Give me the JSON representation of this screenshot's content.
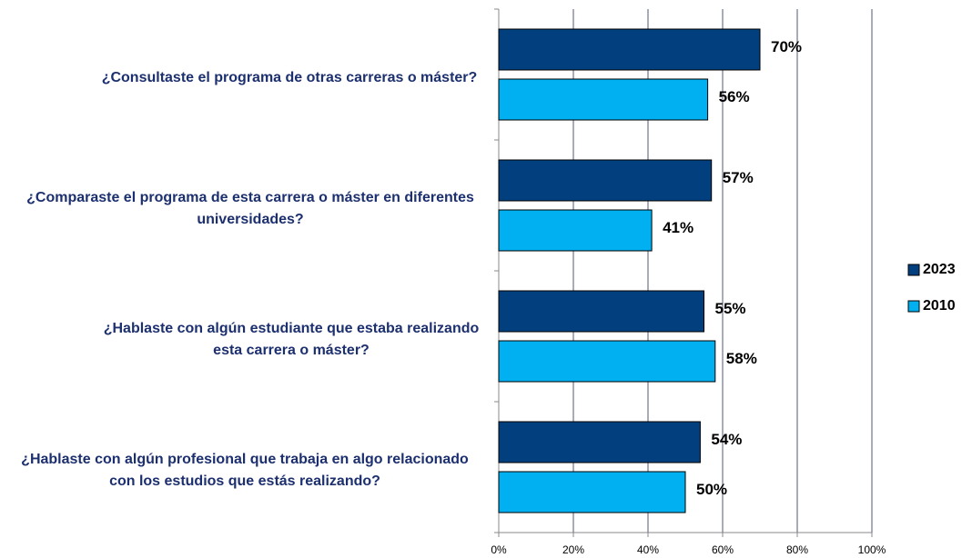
{
  "chart_data": {
    "type": "bar",
    "orientation": "horizontal",
    "categories": [
      "¿Consultaste el programa de otras carreras o máster?",
      "¿Comparaste el programa de esta carrera o máster en diferentes universidades?",
      "¿Hablaste con algún estudiante que estaba realizando esta carrera o máster?",
      "¿Hablaste con algún profesional que trabaja en algo relacionado con los estudios que estás realizando?"
    ],
    "series": [
      {
        "name": "2023",
        "color": "#023f7e",
        "values": [
          70,
          57,
          55,
          54
        ],
        "value_labels": [
          "70%",
          "57%",
          "55%",
          "54%"
        ]
      },
      {
        "name": "2010",
        "color": "#00b0f0",
        "values": [
          56,
          41,
          58,
          50
        ],
        "value_labels": [
          "56%",
          "41%",
          "58%",
          "50%"
        ]
      }
    ],
    "xlim": [
      0,
      100
    ],
    "xticks": [
      {
        "value": 0,
        "label": "0%"
      },
      {
        "value": 20,
        "label": "20%"
      },
      {
        "value": 40,
        "label": "40%"
      },
      {
        "value": 60,
        "label": "60%"
      },
      {
        "value": 80,
        "label": "80%"
      },
      {
        "value": 100,
        "label": "100%"
      }
    ],
    "grid": true,
    "legend": "right"
  }
}
